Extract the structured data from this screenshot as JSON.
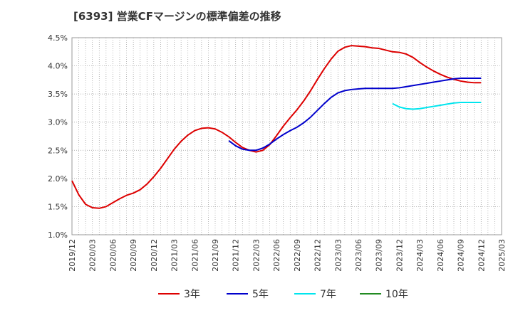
{
  "chart_data": {
    "type": "line",
    "title": "[6393]  営業CFマージンの標準偏差の推移",
    "x": [
      "2019/12",
      "2020/03",
      "2020/06",
      "2020/09",
      "2020/12",
      "2021/03",
      "2021/06",
      "2021/09",
      "2021/12",
      "2022/03",
      "2022/06",
      "2022/09",
      "2022/12",
      "2023/03",
      "2023/06",
      "2023/09",
      "2023/12",
      "2024/03",
      "2024/06",
      "2024/09",
      "2024/12",
      "2025/03"
    ],
    "y_ticks": [
      "1.0%",
      "1.5%",
      "2.0%",
      "2.5%",
      "3.0%",
      "3.5%",
      "4.0%",
      "4.5%"
    ],
    "ylim": [
      1.0,
      4.5
    ],
    "grid": true,
    "legend_position": "bottom",
    "series": [
      {
        "name": "3年",
        "color": "#dd0000",
        "points": [
          [
            "2019/12",
            1.96
          ],
          [
            "2020/01",
            1.71
          ],
          [
            "2020/02",
            1.54
          ],
          [
            "2020/03",
            1.48
          ],
          [
            "2020/04",
            1.47
          ],
          [
            "2020/05",
            1.5
          ],
          [
            "2020/06",
            1.57
          ],
          [
            "2020/07",
            1.64
          ],
          [
            "2020/08",
            1.7
          ],
          [
            "2020/09",
            1.74
          ],
          [
            "2020/10",
            1.8
          ],
          [
            "2020/11",
            1.9
          ],
          [
            "2020/12",
            2.03
          ],
          [
            "2021/01",
            2.18
          ],
          [
            "2021/02",
            2.35
          ],
          [
            "2021/03",
            2.52
          ],
          [
            "2021/04",
            2.66
          ],
          [
            "2021/05",
            2.77
          ],
          [
            "2021/06",
            2.85
          ],
          [
            "2021/07",
            2.89
          ],
          [
            "2021/08",
            2.9
          ],
          [
            "2021/09",
            2.88
          ],
          [
            "2021/10",
            2.82
          ],
          [
            "2021/11",
            2.74
          ],
          [
            "2021/12",
            2.64
          ],
          [
            "2022/01",
            2.55
          ],
          [
            "2022/02",
            2.5
          ],
          [
            "2022/03",
            2.47
          ],
          [
            "2022/04",
            2.5
          ],
          [
            "2022/05",
            2.6
          ],
          [
            "2022/06",
            2.76
          ],
          [
            "2022/07",
            2.93
          ],
          [
            "2022/08",
            3.08
          ],
          [
            "2022/09",
            3.22
          ],
          [
            "2022/10",
            3.38
          ],
          [
            "2022/11",
            3.56
          ],
          [
            "2022/12",
            3.76
          ],
          [
            "2023/01",
            3.95
          ],
          [
            "2023/02",
            4.12
          ],
          [
            "2023/03",
            4.26
          ],
          [
            "2023/04",
            4.33
          ],
          [
            "2023/05",
            4.36
          ],
          [
            "2023/06",
            4.35
          ],
          [
            "2023/07",
            4.34
          ],
          [
            "2023/08",
            4.32
          ],
          [
            "2023/09",
            4.31
          ],
          [
            "2023/10",
            4.28
          ],
          [
            "2023/11",
            4.25
          ],
          [
            "2023/12",
            4.24
          ],
          [
            "2024/01",
            4.21
          ],
          [
            "2024/02",
            4.15
          ],
          [
            "2024/03",
            4.06
          ],
          [
            "2024/04",
            3.98
          ],
          [
            "2024/05",
            3.91
          ],
          [
            "2024/06",
            3.85
          ],
          [
            "2024/07",
            3.8
          ],
          [
            "2024/08",
            3.76
          ],
          [
            "2024/09",
            3.73
          ],
          [
            "2024/10",
            3.71
          ],
          [
            "2024/11",
            3.7
          ],
          [
            "2024/12",
            3.7
          ]
        ]
      },
      {
        "name": "5年",
        "color": "#0000cc",
        "points": [
          [
            "2021/11",
            2.67
          ],
          [
            "2021/12",
            2.58
          ],
          [
            "2022/01",
            2.52
          ],
          [
            "2022/02",
            2.5
          ],
          [
            "2022/03",
            2.5
          ],
          [
            "2022/04",
            2.54
          ],
          [
            "2022/05",
            2.61
          ],
          [
            "2022/06",
            2.7
          ],
          [
            "2022/07",
            2.78
          ],
          [
            "2022/08",
            2.85
          ],
          [
            "2022/09",
            2.91
          ],
          [
            "2022/10",
            2.99
          ],
          [
            "2022/11",
            3.09
          ],
          [
            "2022/12",
            3.21
          ],
          [
            "2023/01",
            3.33
          ],
          [
            "2023/02",
            3.44
          ],
          [
            "2023/03",
            3.52
          ],
          [
            "2023/04",
            3.56
          ],
          [
            "2023/05",
            3.58
          ],
          [
            "2023/06",
            3.59
          ],
          [
            "2023/07",
            3.6
          ],
          [
            "2023/08",
            3.6
          ],
          [
            "2023/09",
            3.6
          ],
          [
            "2023/10",
            3.6
          ],
          [
            "2023/11",
            3.6
          ],
          [
            "2023/12",
            3.61
          ],
          [
            "2024/01",
            3.63
          ],
          [
            "2024/02",
            3.65
          ],
          [
            "2024/03",
            3.67
          ],
          [
            "2024/04",
            3.69
          ],
          [
            "2024/05",
            3.71
          ],
          [
            "2024/06",
            3.73
          ],
          [
            "2024/07",
            3.75
          ],
          [
            "2024/08",
            3.77
          ],
          [
            "2024/09",
            3.78
          ],
          [
            "2024/10",
            3.78
          ],
          [
            "2024/11",
            3.78
          ],
          [
            "2024/12",
            3.78
          ]
        ]
      },
      {
        "name": "7年",
        "color": "#00e5ee",
        "points": [
          [
            "2023/11",
            3.33
          ],
          [
            "2023/12",
            3.27
          ],
          [
            "2024/01",
            3.24
          ],
          [
            "2024/02",
            3.23
          ],
          [
            "2024/03",
            3.24
          ],
          [
            "2024/04",
            3.26
          ],
          [
            "2024/05",
            3.28
          ],
          [
            "2024/06",
            3.3
          ],
          [
            "2024/07",
            3.32
          ],
          [
            "2024/08",
            3.34
          ],
          [
            "2024/09",
            3.35
          ],
          [
            "2024/10",
            3.35
          ],
          [
            "2024/11",
            3.35
          ],
          [
            "2024/12",
            3.35
          ]
        ]
      },
      {
        "name": "10年",
        "color": "#228b22",
        "points": []
      }
    ]
  }
}
